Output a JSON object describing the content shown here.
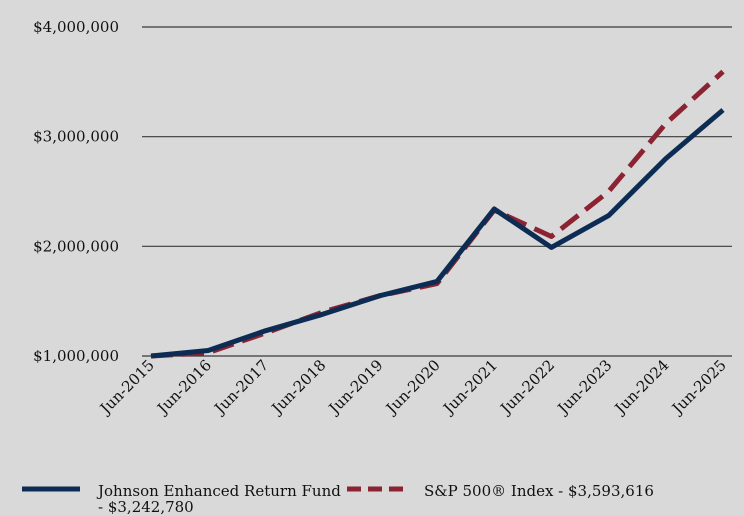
{
  "chart_data": {
    "type": "line",
    "categories": [
      "Jun-2015",
      "Jun-2016",
      "Jun-2017",
      "Jun-2018",
      "Jun-2019",
      "Jun-2020",
      "Jun-2021",
      "Jun-2022",
      "Jun-2023",
      "Jun-2024",
      "Jun-2025"
    ],
    "y_ticks": [
      "$1,000,000",
      "$2,000,000",
      "$3,000,000",
      "$4,000,000"
    ],
    "y_tick_values": [
      1000000,
      2000000,
      3000000,
      4000000
    ],
    "ylim": [
      1000000,
      4000000
    ],
    "grid": "horizontal",
    "legend_position": "bottom",
    "series": [
      {
        "name": "Johnson Enhanced Return Fund - $3,242,780",
        "legend_line1": "Johnson Enhanced Return Fund",
        "legend_line2": "- $3,242,780",
        "color": "#0d2c54",
        "style": "solid",
        "values": [
          1000000,
          1050000,
          1230000,
          1380000,
          1550000,
          1680000,
          2340000,
          1990000,
          2280000,
          2800000,
          3242780
        ]
      },
      {
        "name": "S&P 500® Index - $3,593,616",
        "legend_line1": "S&P 500® Index - $3,593,616",
        "color": "#8b2332",
        "style": "dashed",
        "values": [
          1000000,
          1030000,
          1210000,
          1400000,
          1550000,
          1660000,
          2330000,
          2090000,
          2500000,
          3120000,
          3593616
        ]
      }
    ]
  }
}
